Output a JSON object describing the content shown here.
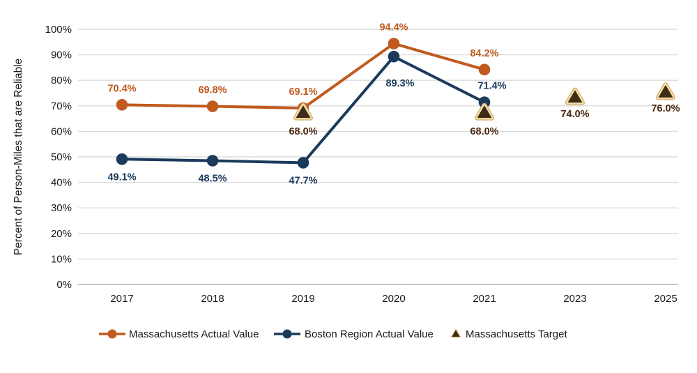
{
  "chart_data": {
    "type": "line",
    "title": "",
    "ylabel": "Percent of Person-Miles that are Reliable",
    "xlabel": "",
    "categories": [
      "2017",
      "2018",
      "2019",
      "2020",
      "2021",
      "2023",
      "2025"
    ],
    "ylim": [
      0,
      100
    ],
    "yticks": [
      "0%",
      "10%",
      "20%",
      "30%",
      "40%",
      "50%",
      "60%",
      "70%",
      "80%",
      "90%",
      "100%"
    ],
    "grid": true,
    "legend_position": "bottom",
    "colors": {
      "massachusetts_actual": "#C05A1E",
      "boston_region_actual": "#1B3A5C",
      "target_fill": "#3F2B16",
      "target_border_cream": "#F5E2AC",
      "target_border_outer": "#D7A964",
      "target_label": "#4C2A12",
      "gridline": "#DCDCDC",
      "axis_line": "#B3B3B3",
      "text": "#1A1A1A"
    },
    "series": [
      {
        "name": "Massachusetts Actual Value",
        "marker": "circle",
        "color": "#C05A1E",
        "values": [
          70.4,
          69.8,
          69.1,
          94.4,
          84.2,
          null,
          null
        ],
        "labels": [
          "70.4%",
          "69.8%",
          "69.1%",
          "94.4%",
          "84.2%",
          "",
          ""
        ]
      },
      {
        "name": "Boston Region Actual Value",
        "marker": "circle",
        "color": "#1B3A5C",
        "values": [
          49.1,
          48.5,
          47.7,
          89.3,
          71.4,
          null,
          null
        ],
        "labels": [
          "49.1%",
          "48.5%",
          "47.7%",
          "89.3%",
          "71.4%",
          "",
          ""
        ]
      },
      {
        "name": "Massachusetts Target",
        "marker": "triangle",
        "color": "#3F2B16",
        "label_color": "#4C2A12",
        "values": [
          null,
          null,
          68.0,
          null,
          68.0,
          74.0,
          76.0
        ],
        "labels": [
          "",
          "",
          "68.0%",
          "",
          "68.0%",
          "74.0%",
          "76.0%"
        ]
      }
    ]
  }
}
